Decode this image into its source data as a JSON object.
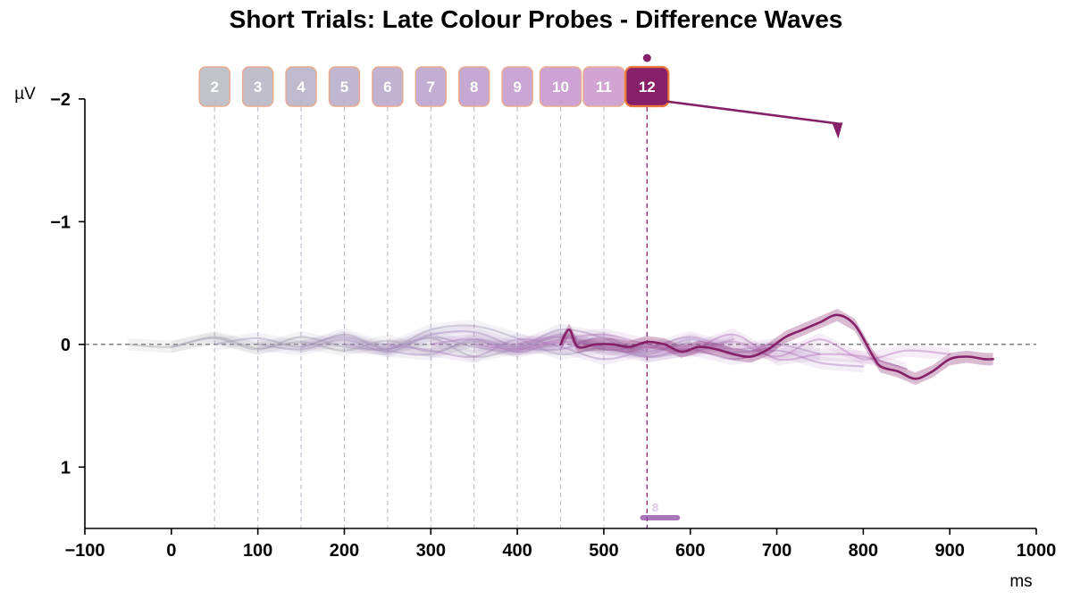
{
  "chart_data": {
    "type": "line",
    "title": "Short Trials: Late Colour Probes - Difference Waves",
    "xlabel": "ms",
    "ylabel": "µV",
    "xlim": [
      -100,
      1000
    ],
    "ylim": [
      1.5,
      -2.05
    ],
    "y_inverted": true,
    "x_ticks": [
      -100,
      0,
      100,
      200,
      300,
      400,
      500,
      600,
      700,
      800,
      900,
      1000
    ],
    "x_tick_labels": [
      "−100",
      "0",
      "100",
      "200",
      "300",
      "400",
      "500",
      "600",
      "700",
      "800",
      "900",
      "1000"
    ],
    "y_ticks": [
      -2,
      -1,
      0,
      1
    ],
    "y_tick_labels": [
      "−2",
      "−1",
      "0",
      "1"
    ],
    "grid": false,
    "zero_line": true,
    "probes": [
      {
        "label": "2",
        "onset_ms": 50,
        "color": "#b7b7bf",
        "opacity": 0.85
      },
      {
        "label": "3",
        "onset_ms": 100,
        "color": "#b5b2c2",
        "opacity": 0.85
      },
      {
        "label": "4",
        "onset_ms": 150,
        "color": "#b4aec4",
        "opacity": 0.85
      },
      {
        "label": "5",
        "onset_ms": 200,
        "color": "#b5a9c7",
        "opacity": 0.85
      },
      {
        "label": "6",
        "onset_ms": 250,
        "color": "#b6a4c9",
        "opacity": 0.85
      },
      {
        "label": "7",
        "onset_ms": 300,
        "color": "#b89fcb",
        "opacity": 0.85
      },
      {
        "label": "8",
        "onset_ms": 350,
        "color": "#bb9acc",
        "opacity": 0.85
      },
      {
        "label": "9",
        "onset_ms": 400,
        "color": "#bf96cc",
        "opacity": 0.85
      },
      {
        "label": "10",
        "onset_ms": 450,
        "color": "#c493cb",
        "opacity": 0.85
      },
      {
        "label": "11",
        "onset_ms": 500,
        "color": "#c994c9",
        "opacity": 0.85
      },
      {
        "label": "12",
        "onset_ms": 550,
        "color": "#862169",
        "opacity": 1.0
      }
    ],
    "series": [
      {
        "probe": "2",
        "color": "#a8a8ae",
        "opacity": 0.45,
        "x": [
          -50,
          0,
          50,
          100,
          150,
          200,
          250,
          300,
          350,
          400,
          450
        ],
        "y": [
          0.0,
          0.02,
          -0.06,
          0.03,
          -0.02,
          0.05,
          -0.03,
          0.06,
          -0.02,
          0.04,
          0.0
        ]
      },
      {
        "probe": "3",
        "color": "#a6a2b4",
        "opacity": 0.45,
        "x": [
          0,
          50,
          100,
          150,
          200,
          250,
          300,
          350,
          400,
          450,
          500
        ],
        "y": [
          0.02,
          -0.05,
          0.04,
          -0.06,
          0.02,
          0.04,
          -0.05,
          0.1,
          0.03,
          -0.06,
          0.02
        ]
      },
      {
        "probe": "4",
        "color": "#a39cb8",
        "opacity": 0.45,
        "x": [
          50,
          100,
          150,
          200,
          250,
          300,
          350,
          400,
          450,
          500,
          550
        ],
        "y": [
          0.0,
          -0.05,
          0.02,
          -0.08,
          0.03,
          -0.12,
          -0.15,
          -0.05,
          0.08,
          0.02,
          0.05
        ]
      },
      {
        "probe": "5",
        "color": "#a596bb",
        "opacity": 0.45,
        "x": [
          100,
          150,
          200,
          250,
          300,
          350,
          400,
          450,
          500,
          550,
          600
        ],
        "y": [
          0.0,
          0.04,
          -0.04,
          0.06,
          -0.06,
          0.02,
          0.05,
          -0.08,
          0.04,
          0.06,
          -0.02
        ]
      },
      {
        "probe": "6",
        "color": "#a790be",
        "opacity": 0.45,
        "x": [
          150,
          200,
          250,
          300,
          350,
          400,
          450,
          500,
          550,
          600,
          650
        ],
        "y": [
          0.02,
          -0.06,
          0.05,
          0.08,
          -0.04,
          0.02,
          -0.12,
          -0.05,
          0.1,
          0.04,
          -0.04
        ]
      },
      {
        "probe": "7",
        "color": "#a98ac0",
        "opacity": 0.45,
        "x": [
          200,
          250,
          300,
          350,
          400,
          450,
          500,
          550,
          600,
          650,
          700
        ],
        "y": [
          0.0,
          0.04,
          -0.08,
          -0.1,
          0.02,
          0.04,
          -0.06,
          0.08,
          -0.04,
          0.06,
          0.02
        ]
      },
      {
        "probe": "8",
        "color": "#ac84c1",
        "opacity": 0.45,
        "x": [
          250,
          300,
          350,
          400,
          450,
          500,
          550,
          600,
          650,
          700,
          750
        ],
        "y": [
          0.0,
          0.05,
          0.1,
          -0.04,
          0.02,
          0.12,
          0.04,
          -0.06,
          0.04,
          0.0,
          0.08
        ]
      },
      {
        "probe": "9",
        "color": "#b07fc0",
        "opacity": 0.45,
        "x": [
          300,
          350,
          400,
          450,
          500,
          550,
          600,
          650,
          700,
          750,
          800
        ],
        "y": [
          0.0,
          -0.04,
          0.06,
          -0.02,
          0.02,
          0.1,
          0.04,
          0.12,
          0.05,
          0.15,
          0.18
        ]
      },
      {
        "probe": "10",
        "color": "#b57bbf",
        "opacity": 0.45,
        "x": [
          350,
          400,
          450,
          500,
          550,
          600,
          650,
          700,
          750,
          800,
          850
        ],
        "y": [
          0.0,
          0.04,
          -0.04,
          -0.08,
          0.0,
          0.04,
          -0.08,
          0.12,
          0.08,
          0.1,
          0.2
        ]
      },
      {
        "probe": "11",
        "color": "#b97abc",
        "opacity": 0.45,
        "x": [
          400,
          450,
          500,
          550,
          600,
          650,
          700,
          750,
          800,
          850,
          900
        ],
        "y": [
          0.0,
          -0.06,
          0.04,
          0.02,
          0.06,
          -0.02,
          0.1,
          -0.04,
          0.12,
          0.05,
          0.08
        ]
      },
      {
        "probe": "12",
        "color": "#862169",
        "opacity": 1.0,
        "x": [
          450,
          460,
          470,
          490,
          510,
          530,
          550,
          570,
          590,
          610,
          630,
          650,
          670,
          690,
          710,
          730,
          750,
          770,
          790,
          810,
          820,
          840,
          860,
          880,
          900,
          920,
          940,
          950
        ],
        "y": [
          0.0,
          -0.12,
          0.02,
          0.0,
          0.0,
          0.02,
          -0.02,
          0.0,
          0.06,
          0.02,
          0.04,
          0.08,
          0.1,
          0.04,
          -0.06,
          -0.12,
          -0.18,
          -0.24,
          -0.16,
          0.08,
          0.18,
          0.22,
          0.28,
          0.22,
          0.12,
          0.1,
          0.12,
          0.12
        ]
      }
    ],
    "highlight": {
      "probe": "12",
      "color": "#862169",
      "onset_ms": 550,
      "pointer_end_ms": 770,
      "pointer_end_uv": -1.8,
      "significance_bar_ms": [
        545,
        585
      ],
      "significance_bar_label": "8"
    }
  }
}
